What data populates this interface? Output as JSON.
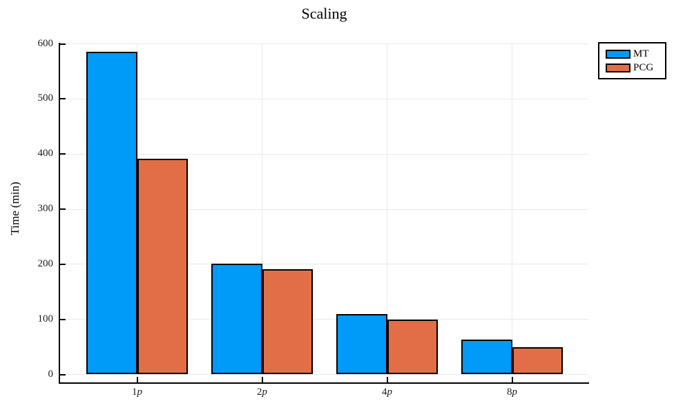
{
  "chart_data": {
    "type": "bar",
    "title": "Scaling",
    "xlabel": "",
    "ylabel": "Time (min)",
    "categories": [
      "1p",
      "2p",
      "4p",
      "8p"
    ],
    "series": [
      {
        "name": "MT",
        "color": "#009AF9",
        "values": [
          585,
          201,
          110,
          63
        ]
      },
      {
        "name": "PCG",
        "color": "#E26E47",
        "values": [
          392,
          191,
          99,
          49
        ]
      }
    ],
    "ylim": [
      0,
      600
    ],
    "yticks": [
      0,
      100,
      200,
      300,
      400,
      500,
      600
    ],
    "ytick_labels": [
      "0",
      "100",
      "200",
      "300",
      "400",
      "500",
      "600"
    ],
    "grid": true,
    "grid_color": "#E9E9E9",
    "axis_color": "#000000",
    "bar_stroke_color": "#000000",
    "background": "#FFFFFF",
    "legend": {
      "position": "outer-top-right",
      "entries": [
        "MT",
        "PCG"
      ]
    }
  }
}
